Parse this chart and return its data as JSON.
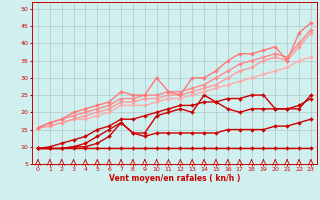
{
  "xlabel": "Vent moyen/en rafales ( kn/h )",
  "xlim": [
    -0.5,
    23.5
  ],
  "ylim": [
    5,
    52
  ],
  "yticks": [
    5,
    10,
    15,
    20,
    25,
    30,
    35,
    40,
    45,
    50
  ],
  "xticks": [
    0,
    1,
    2,
    3,
    4,
    5,
    6,
    7,
    8,
    9,
    10,
    11,
    12,
    13,
    14,
    15,
    16,
    17,
    18,
    19,
    20,
    21,
    22,
    23
  ],
  "background_color": "#d0f0f0",
  "grid_color": "#b0c8c8",
  "series": [
    {
      "x": [
        0,
        1,
        2,
        3,
        4,
        5,
        6,
        7,
        8,
        9,
        10,
        11,
        12,
        13,
        14,
        15,
        16,
        17,
        18,
        19,
        20,
        21,
        22,
        23
      ],
      "y": [
        9.5,
        9.5,
        9.5,
        9.5,
        9.5,
        9.5,
        9.5,
        9.5,
        9.5,
        9.5,
        9.5,
        9.5,
        9.5,
        9.5,
        9.5,
        9.5,
        9.5,
        9.5,
        9.5,
        9.5,
        9.5,
        9.5,
        9.5,
        9.5
      ],
      "color": "#cc0000",
      "lw": 1.0,
      "marker": "D",
      "ms": 2.0
    },
    {
      "x": [
        0,
        1,
        2,
        3,
        4,
        5,
        6,
        7,
        8,
        9,
        10,
        11,
        12,
        13,
        14,
        15,
        16,
        17,
        18,
        19,
        20,
        21,
        22,
        23
      ],
      "y": [
        9.5,
        9.5,
        9.5,
        10,
        10,
        11,
        13,
        17,
        14,
        13,
        14,
        14,
        14,
        14,
        14,
        14,
        15,
        15,
        15,
        15,
        16,
        16,
        17,
        18
      ],
      "color": "#cc0000",
      "lw": 1.0,
      "marker": "D",
      "ms": 2.0
    },
    {
      "x": [
        0,
        1,
        2,
        3,
        4,
        5,
        6,
        7,
        8,
        9,
        10,
        11,
        12,
        13,
        14,
        15,
        16,
        17,
        18,
        19,
        20,
        21,
        22,
        23
      ],
      "y": [
        9.5,
        9.5,
        9.5,
        10,
        11,
        13,
        15,
        17,
        14,
        14,
        19,
        20,
        21,
        20,
        25,
        23,
        21,
        20,
        21,
        21,
        21,
        21,
        21,
        25
      ],
      "color": "#cc0000",
      "lw": 1.0,
      "marker": "D",
      "ms": 2.0
    },
    {
      "x": [
        0,
        1,
        2,
        3,
        4,
        5,
        6,
        7,
        8,
        9,
        10,
        11,
        12,
        13,
        14,
        15,
        16,
        17,
        18,
        19,
        20,
        21,
        22,
        23
      ],
      "y": [
        9.5,
        10,
        11,
        12,
        13,
        15,
        16,
        18,
        18,
        19,
        20,
        21,
        22,
        22,
        23,
        23,
        24,
        24,
        25,
        25,
        21,
        21,
        22,
        24
      ],
      "color": "#cc0000",
      "lw": 1.0,
      "marker": "D",
      "ms": 2.0
    },
    {
      "x": [
        0,
        1,
        2,
        3,
        4,
        5,
        6,
        7,
        8,
        9,
        10,
        11,
        12,
        13,
        14,
        15,
        16,
        17,
        18,
        19,
        20,
        21,
        22,
        23
      ],
      "y": [
        15.5,
        16,
        17,
        18,
        18,
        19,
        20,
        22,
        22,
        22,
        23,
        24,
        24,
        25,
        26,
        27,
        28,
        29,
        30,
        31,
        32,
        33,
        35,
        36
      ],
      "color": "#ffaaaa",
      "lw": 1.0,
      "marker": "D",
      "ms": 2.0
    },
    {
      "x": [
        0,
        1,
        2,
        3,
        4,
        5,
        6,
        7,
        8,
        9,
        10,
        11,
        12,
        13,
        14,
        15,
        16,
        17,
        18,
        19,
        20,
        21,
        22,
        23
      ],
      "y": [
        15.5,
        16,
        17,
        18,
        19,
        20,
        21,
        23,
        23,
        24,
        24,
        25,
        25,
        26,
        27,
        28,
        30,
        32,
        33,
        35,
        36,
        35,
        39,
        43
      ],
      "color": "#ff9999",
      "lw": 1.0,
      "marker": "D",
      "ms": 2.0
    },
    {
      "x": [
        0,
        1,
        2,
        3,
        4,
        5,
        6,
        7,
        8,
        9,
        10,
        11,
        12,
        13,
        14,
        15,
        16,
        17,
        18,
        19,
        20,
        21,
        22,
        23
      ],
      "y": [
        15.5,
        17,
        18,
        19,
        20,
        21,
        22,
        24,
        24,
        25,
        25,
        26,
        26,
        27,
        28,
        30,
        32,
        34,
        35,
        36,
        37,
        36,
        40,
        44
      ],
      "color": "#ff8888",
      "lw": 1.0,
      "marker": "D",
      "ms": 2.0
    },
    {
      "x": [
        0,
        1,
        2,
        3,
        4,
        5,
        6,
        7,
        8,
        9,
        10,
        11,
        12,
        13,
        14,
        15,
        16,
        17,
        18,
        19,
        20,
        21,
        22,
        23
      ],
      "y": [
        15.5,
        17,
        18,
        20,
        21,
        22,
        23,
        26,
        25,
        25,
        30,
        26,
        25,
        30,
        30,
        32,
        35,
        37,
        37,
        38,
        39,
        35,
        43,
        46
      ],
      "color": "#ff7777",
      "lw": 1.0,
      "marker": "D",
      "ms": 2.0
    }
  ]
}
